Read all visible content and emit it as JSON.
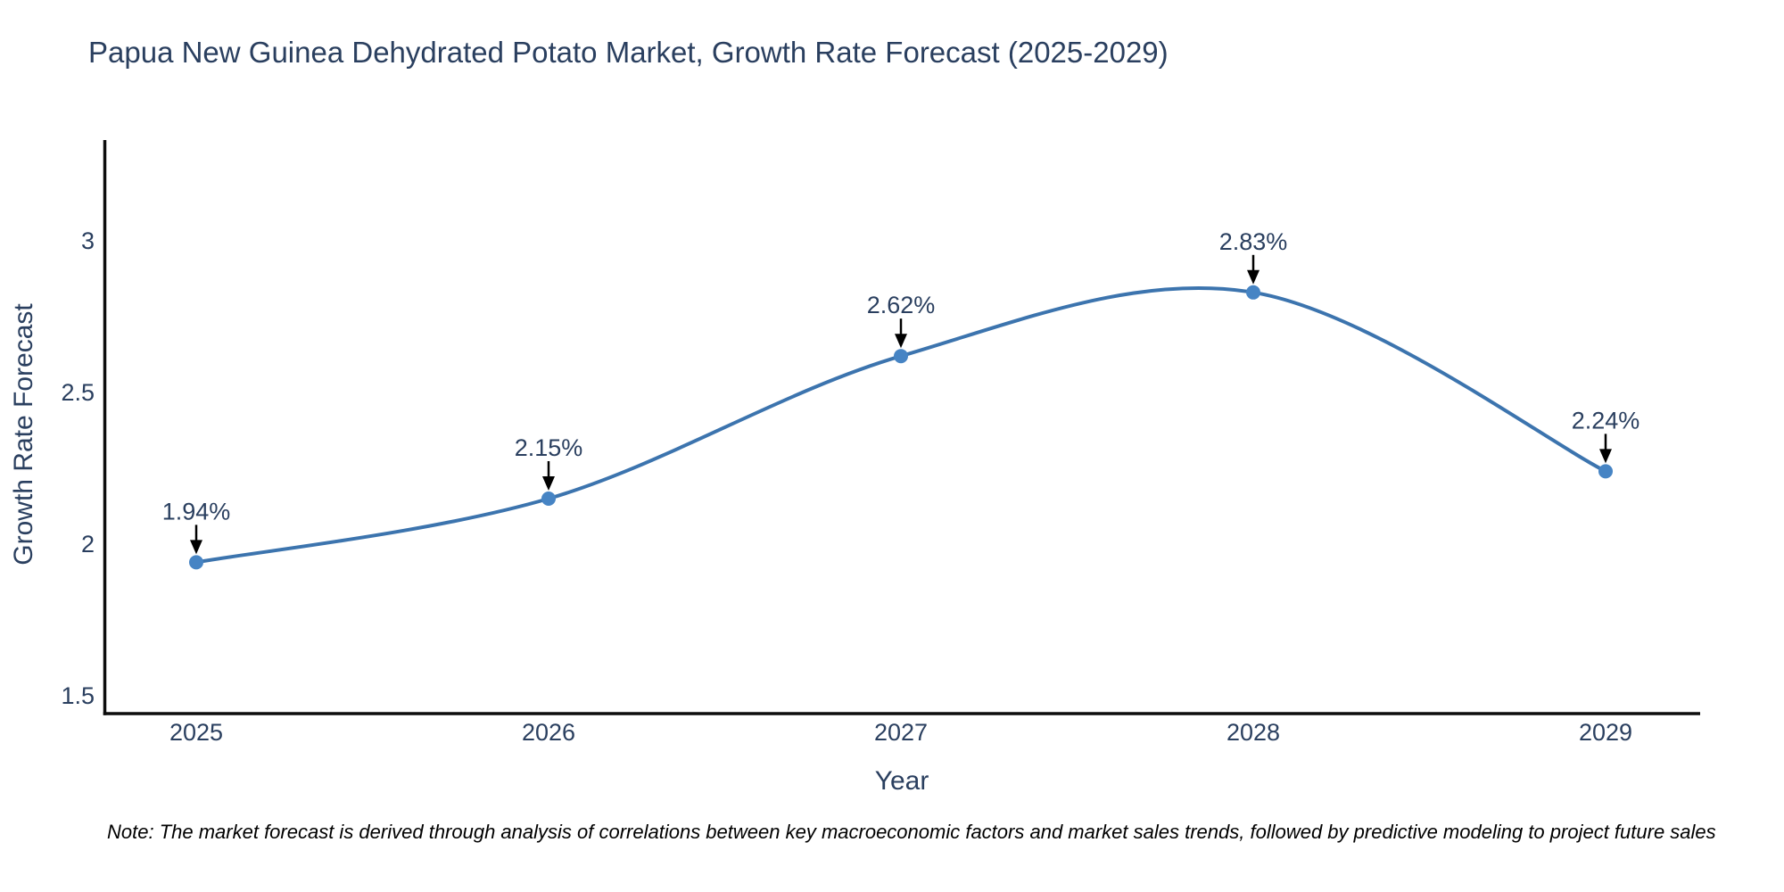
{
  "title": "Papua New Guinea Dehydrated Potato Market, Growth Rate Forecast (2025-2029)",
  "note": "Note: The market forecast is derived through analysis of correlations between key macroeconomic factors and market sales trends, followed by predictive modeling to project future sales",
  "chart_data": {
    "type": "line",
    "title": "Papua New Guinea Dehydrated Potato Market, Growth Rate Forecast (2025-2029)",
    "x": [
      2025,
      2026,
      2027,
      2028,
      2029
    ],
    "series": [
      {
        "name": "Growth Rate Forecast",
        "values": [
          1.94,
          2.15,
          2.62,
          2.83,
          2.24
        ]
      }
    ],
    "point_labels": [
      "1.94%",
      "2.15%",
      "2.62%",
      "2.83%",
      "2.24%"
    ],
    "xlabel": "Year",
    "ylabel": "Growth Rate Forecast",
    "yticks": [
      1.5,
      2,
      2.5,
      3
    ],
    "ytick_labels": [
      "1.5",
      "2",
      "2.5",
      "3"
    ],
    "ylim": [
      1.44,
      3.33
    ],
    "line_shape": "spline",
    "markers": true,
    "grid": false,
    "legend": "none",
    "colors": {
      "line": "#3c74ae",
      "marker": "#4684c4",
      "arrow": "#000000",
      "text": "#2a3f5f",
      "axis_line": "#0d0d0d"
    }
  }
}
